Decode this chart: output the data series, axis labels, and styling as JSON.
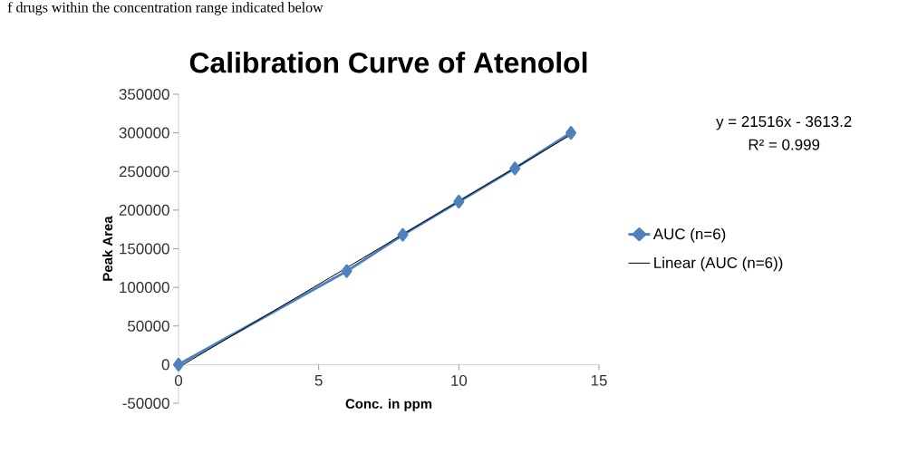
{
  "chart_data": {
    "type": "line",
    "title": "Calibration Curve of Atenolol",
    "xlabel": "Conc. in ppm",
    "ylabel": "Peak Area",
    "annotations": [
      "f drugs within the concentration range indicated below",
      "y = 21516x - 3613.2",
      "R² = 0.999"
    ],
    "x": [
      0,
      6,
      8,
      10,
      12,
      14
    ],
    "series": [
      {
        "name": "AUC (n=6)",
        "color": "#4f81bd",
        "values": [
          0,
          121000,
          168000,
          211000,
          254000,
          300000
        ]
      },
      {
        "name": "Linear (AUC (n=6))",
        "color": "#000000",
        "x": [
          0,
          14
        ],
        "values": [
          -3600,
          297600
        ],
        "marker": "none"
      }
    ],
    "xlim": [
      0,
      15
    ],
    "xticks": [
      0,
      5,
      10,
      15
    ],
    "ylim": [
      -50000,
      350000
    ],
    "yticks": [
      -50000,
      0,
      50000,
      100000,
      150000,
      200000,
      250000,
      300000,
      350000
    ],
    "legend": "right",
    "marker": "diamond",
    "line_style": "solid",
    "grid": false
  }
}
